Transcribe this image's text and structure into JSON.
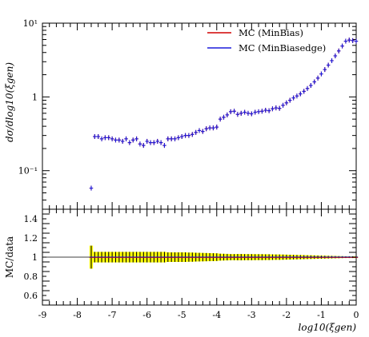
{
  "chart_data": [
    {
      "type": "scatter",
      "panel": "main",
      "ylabel": "dσ/dlog10(ξgen)",
      "yscale": "log",
      "ylim": [
        0.03,
        10
      ],
      "xlim": [
        -9,
        0
      ],
      "y_tick_labels": [
        "10⁻¹",
        "1",
        "10¹"
      ],
      "legend_position": "top-right",
      "series": [
        {
          "name": "MC (MinBias)",
          "color": "#d00000",
          "x": [
            -7.6,
            -7.5,
            -7.4,
            -7.3,
            -7.2,
            -7.1,
            -7.0,
            -6.9,
            -6.8,
            -6.7,
            -6.6,
            -6.5,
            -6.4,
            -6.3,
            -6.2,
            -6.1,
            -6.0,
            -5.9,
            -5.8,
            -5.7,
            -5.6,
            -5.5,
            -5.4,
            -5.3,
            -5.2,
            -5.1,
            -5.0,
            -4.9,
            -4.8,
            -4.7,
            -4.6,
            -4.5,
            -4.4,
            -4.3,
            -4.2,
            -4.1,
            -4.0,
            -3.9,
            -3.8,
            -3.7,
            -3.6,
            -3.5,
            -3.4,
            -3.3,
            -3.2,
            -3.1,
            -3.0,
            -2.9,
            -2.8,
            -2.7,
            -2.6,
            -2.5,
            -2.4,
            -2.3,
            -2.2,
            -2.1,
            -2.0,
            -1.9,
            -1.8,
            -1.7,
            -1.6,
            -1.5,
            -1.4,
            -1.3,
            -1.2,
            -1.1,
            -1.0,
            -0.9,
            -0.8,
            -0.7,
            -0.6,
            -0.5,
            -0.4,
            -0.3,
            -0.2,
            -0.1,
            0.0
          ],
          "y": [
            0.058,
            0.29,
            0.29,
            0.27,
            0.28,
            0.28,
            0.27,
            0.26,
            0.26,
            0.25,
            0.27,
            0.24,
            0.26,
            0.27,
            0.23,
            0.22,
            0.25,
            0.24,
            0.24,
            0.25,
            0.24,
            0.22,
            0.27,
            0.27,
            0.27,
            0.28,
            0.29,
            0.3,
            0.3,
            0.31,
            0.33,
            0.35,
            0.34,
            0.37,
            0.38,
            0.38,
            0.39,
            0.5,
            0.53,
            0.57,
            0.63,
            0.64,
            0.58,
            0.6,
            0.62,
            0.6,
            0.59,
            0.62,
            0.63,
            0.64,
            0.66,
            0.65,
            0.69,
            0.71,
            0.7,
            0.77,
            0.83,
            0.9,
            0.97,
            1.03,
            1.1,
            1.19,
            1.3,
            1.43,
            1.6,
            1.8,
            2.05,
            2.35,
            2.7,
            3.1,
            3.6,
            4.2,
            4.9,
            5.7,
            5.9,
            5.8,
            5.7
          ]
        },
        {
          "name": "MC (MinBiasedge)",
          "color": "#1a1adc",
          "x": [
            -7.6,
            -7.5,
            -7.4,
            -7.3,
            -7.2,
            -7.1,
            -7.0,
            -6.9,
            -6.8,
            -6.7,
            -6.6,
            -6.5,
            -6.4,
            -6.3,
            -6.2,
            -6.1,
            -6.0,
            -5.9,
            -5.8,
            -5.7,
            -5.6,
            -5.5,
            -5.4,
            -5.3,
            -5.2,
            -5.1,
            -5.0,
            -4.9,
            -4.8,
            -4.7,
            -4.6,
            -4.5,
            -4.4,
            -4.3,
            -4.2,
            -4.1,
            -4.0,
            -3.9,
            -3.8,
            -3.7,
            -3.6,
            -3.5,
            -3.4,
            -3.3,
            -3.2,
            -3.1,
            -3.0,
            -2.9,
            -2.8,
            -2.7,
            -2.6,
            -2.5,
            -2.4,
            -2.3,
            -2.2,
            -2.1,
            -2.0,
            -1.9,
            -1.8,
            -1.7,
            -1.6,
            -1.5,
            -1.4,
            -1.3,
            -1.2,
            -1.1,
            -1.0,
            -0.9,
            -0.8,
            -0.7,
            -0.6,
            -0.5,
            -0.4,
            -0.3,
            -0.2,
            -0.1,
            0.0
          ],
          "y": [
            0.058,
            0.29,
            0.29,
            0.27,
            0.28,
            0.28,
            0.27,
            0.26,
            0.26,
            0.25,
            0.27,
            0.24,
            0.26,
            0.27,
            0.23,
            0.22,
            0.25,
            0.24,
            0.24,
            0.25,
            0.24,
            0.22,
            0.27,
            0.27,
            0.27,
            0.28,
            0.29,
            0.3,
            0.3,
            0.31,
            0.33,
            0.35,
            0.34,
            0.37,
            0.38,
            0.38,
            0.39,
            0.5,
            0.53,
            0.57,
            0.63,
            0.64,
            0.58,
            0.6,
            0.62,
            0.6,
            0.59,
            0.62,
            0.63,
            0.64,
            0.66,
            0.65,
            0.69,
            0.71,
            0.7,
            0.77,
            0.83,
            0.9,
            0.97,
            1.03,
            1.1,
            1.19,
            1.3,
            1.43,
            1.6,
            1.8,
            2.05,
            2.35,
            2.7,
            3.1,
            3.6,
            4.2,
            4.9,
            5.7,
            5.9,
            5.8,
            5.7
          ]
        }
      ]
    },
    {
      "type": "line",
      "panel": "ratio",
      "ylabel": "MC/data",
      "xlabel": "log10(ξgen)",
      "xlim": [
        -9,
        0
      ],
      "ylim": [
        0.5,
        1.5
      ],
      "x_tick_labels": [
        "-9",
        "-8",
        "-7",
        "-6",
        "-5",
        "-4",
        "-3",
        "-2",
        "-1",
        "0"
      ],
      "y_tick_labels": [
        "0.6",
        "0.8",
        "1",
        "1.2",
        "1.4"
      ],
      "band_color": "#ffff00",
      "ratio_value": 1.0,
      "band_x": [
        -7.6,
        -7.5,
        -7.4,
        -7.3,
        -7.2,
        -7.1,
        -7.0,
        -6.9,
        -6.8,
        -6.7,
        -6.6,
        -6.5,
        -6.4,
        -6.3,
        -6.2,
        -6.1,
        -6.0,
        -5.9,
        -5.8,
        -5.7,
        -5.6,
        -5.5,
        -5.4,
        -5.3,
        -5.2,
        -5.1,
        -5.0,
        -4.9,
        -4.8,
        -4.7,
        -4.6,
        -4.5,
        -4.4,
        -4.3,
        -4.2,
        -4.1,
        -4.0,
        -3.9,
        -3.8,
        -3.7,
        -3.6,
        -3.5,
        -3.4,
        -3.3,
        -3.2,
        -3.1,
        -3.0,
        -2.9,
        -2.8,
        -2.7,
        -2.6,
        -2.5,
        -2.4,
        -2.3,
        -2.2,
        -2.1,
        -2.0,
        -1.9,
        -1.8,
        -1.7,
        -1.6,
        -1.5,
        -1.4,
        -1.3,
        -1.2,
        -1.1,
        -1.0,
        -0.9,
        -0.8,
        -0.7,
        -0.6,
        -0.5,
        -0.4,
        -0.3,
        -0.2,
        -0.1,
        0.0
      ],
      "band_half": [
        0.12,
        0.055,
        0.055,
        0.055,
        0.055,
        0.055,
        0.055,
        0.055,
        0.055,
        0.055,
        0.055,
        0.055,
        0.055,
        0.055,
        0.055,
        0.055,
        0.055,
        0.055,
        0.055,
        0.055,
        0.055,
        0.055,
        0.05,
        0.05,
        0.05,
        0.05,
        0.05,
        0.05,
        0.048,
        0.048,
        0.046,
        0.045,
        0.044,
        0.043,
        0.042,
        0.041,
        0.04,
        0.036,
        0.035,
        0.034,
        0.032,
        0.032,
        0.033,
        0.033,
        0.032,
        0.032,
        0.032,
        0.031,
        0.031,
        0.031,
        0.03,
        0.03,
        0.029,
        0.028,
        0.028,
        0.027,
        0.026,
        0.025,
        0.024,
        0.023,
        0.022,
        0.021,
        0.02,
        0.019,
        0.018,
        0.017,
        0.016,
        0.015,
        0.014,
        0.013,
        0.012,
        0.011,
        0.01,
        0.009,
        0.009,
        0.009,
        0.009
      ]
    }
  ]
}
